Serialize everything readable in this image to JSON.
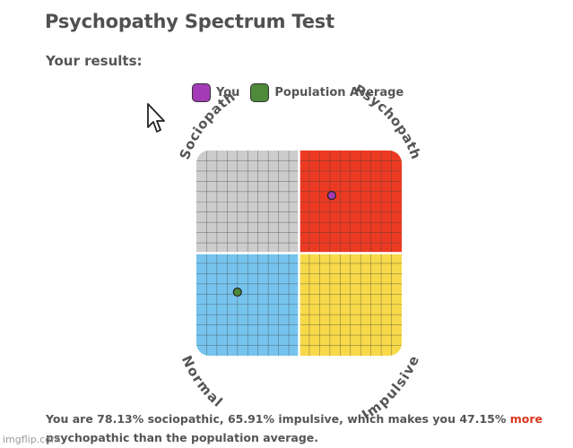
{
  "page": {
    "title": "Psychopathy Spectrum Test",
    "subtitle": "Your results:"
  },
  "legend": {
    "items": [
      {
        "label": "You",
        "color": "#a23bb5"
      },
      {
        "label": "Population Average",
        "color": "#4e8a3a"
      }
    ]
  },
  "chart_data": {
    "type": "scatter",
    "title": "",
    "xlabel": "Impulsive",
    "ylabel": "Sociopathic",
    "xlim": [
      0,
      100
    ],
    "ylim": [
      0,
      100
    ],
    "grid": true,
    "quadrants": {
      "top_left": {
        "label": "Sociopath",
        "color": "#cccccc"
      },
      "top_right": {
        "label": "Psychopath",
        "color": "#ec3a22"
      },
      "bottom_left": {
        "label": "Normal",
        "color": "#76c4ee"
      },
      "bottom_right": {
        "label": "Impulsive",
        "color": "#f7d94a"
      }
    },
    "series": [
      {
        "name": "You",
        "color": "#a23bb5",
        "x": 65.91,
        "y": 78.13
      },
      {
        "name": "Population Average",
        "color": "#4e8a3a",
        "x": 20,
        "y": 31
      }
    ]
  },
  "result": {
    "part1": "You are 78.13% sociopathic, 65.91% impulsive, which makes you 47.15%",
    "highlight": "more",
    "part2": "psychopathic than the population average."
  },
  "watermark": "imgflip.com"
}
